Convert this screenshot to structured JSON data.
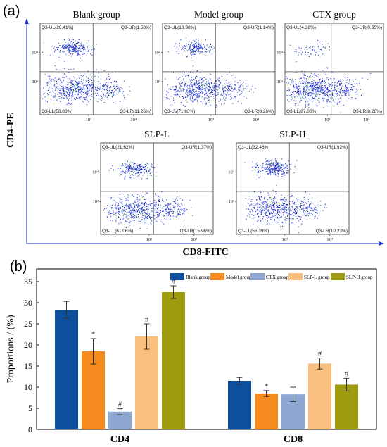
{
  "panel_a": {
    "label": "(a)",
    "y_axis_title": "CD4-PE",
    "x_axis_title": "CD8-FITC",
    "plots": [
      {
        "title": "Blank group",
        "ul": "Q3-UL(28.41%)",
        "ur": "Q3-UR(1.50%)",
        "ll": "Q3-LL(58.83%)",
        "lr": "Q3-LR(11.26%)"
      },
      {
        "title": "Model group",
        "ul": "Q3-UL(18.98%)",
        "ur": "Q3-UR(1.14%)",
        "ll": "Q3-LL(71.63%)",
        "lr": "Q3-LR(8.26%)"
      },
      {
        "title": "CTX group",
        "ul": "Q3-UL(4.38%)",
        "ur": "Q3-UR(0.35%)",
        "ll": "Q3-LL(87.00%)",
        "lr": "Q3-LR(8.28%)"
      },
      {
        "title": "SLP-L",
        "ul": "Q3-UL(21.62%)",
        "ur": "Q3-UR(1.37%)",
        "ll": "Q3-LL(61.06%)",
        "lr": "Q3-LR(15.96%)"
      },
      {
        "title": "SLP-H",
        "ul": "Q3-UL(32.46%)",
        "ur": "Q3-UR(1.92%)",
        "ll": "Q3-LL(55.39%)",
        "lr": "Q3-LR(10.23%)"
      }
    ],
    "tick_labels": {
      "y_upper": "10⁴",
      "y_lower": "10³",
      "x_left": "10³",
      "x_right": "10⁴"
    }
  },
  "panel_b": {
    "label": "(b)"
  },
  "colors": {
    "blank": "#0d4f9c",
    "model": "#f58a1f",
    "ctx": "#8ea6d2",
    "slp_l": "#f9bf7e",
    "slp_h": "#9e9b0f",
    "scatter": "#1a2bd6",
    "panel_axis": "#1c2fd0"
  },
  "chart_data": {
    "type": "bar",
    "categories": [
      "CD4",
      "CD8"
    ],
    "ylabel": "Proportions / (%)",
    "ylim": [
      0,
      38
    ],
    "yticks": [
      0,
      5,
      10,
      15,
      20,
      25,
      30,
      35
    ],
    "legend_position": "top",
    "series": [
      {
        "name": "Blank group",
        "values": [
          28.3,
          11.5
        ],
        "errors": [
          2.0,
          0.8
        ],
        "annotations": [
          "",
          ""
        ]
      },
      {
        "name": "Model group",
        "values": [
          18.5,
          8.5
        ],
        "errors": [
          3.0,
          0.7
        ],
        "annotations": [
          "*",
          "*"
        ]
      },
      {
        "name": "CTX group",
        "values": [
          4.2,
          8.3
        ],
        "errors": [
          0.7,
          1.7
        ],
        "annotations": [
          "#",
          ""
        ]
      },
      {
        "name": "SLP-L group",
        "values": [
          22.0,
          15.6
        ],
        "errors": [
          3.0,
          1.3
        ],
        "annotations": [
          "#",
          "#"
        ]
      },
      {
        "name": "SLP-H group",
        "values": [
          32.5,
          10.6
        ],
        "errors": [
          1.5,
          1.5
        ],
        "annotations": [
          "#",
          "#"
        ]
      }
    ]
  }
}
